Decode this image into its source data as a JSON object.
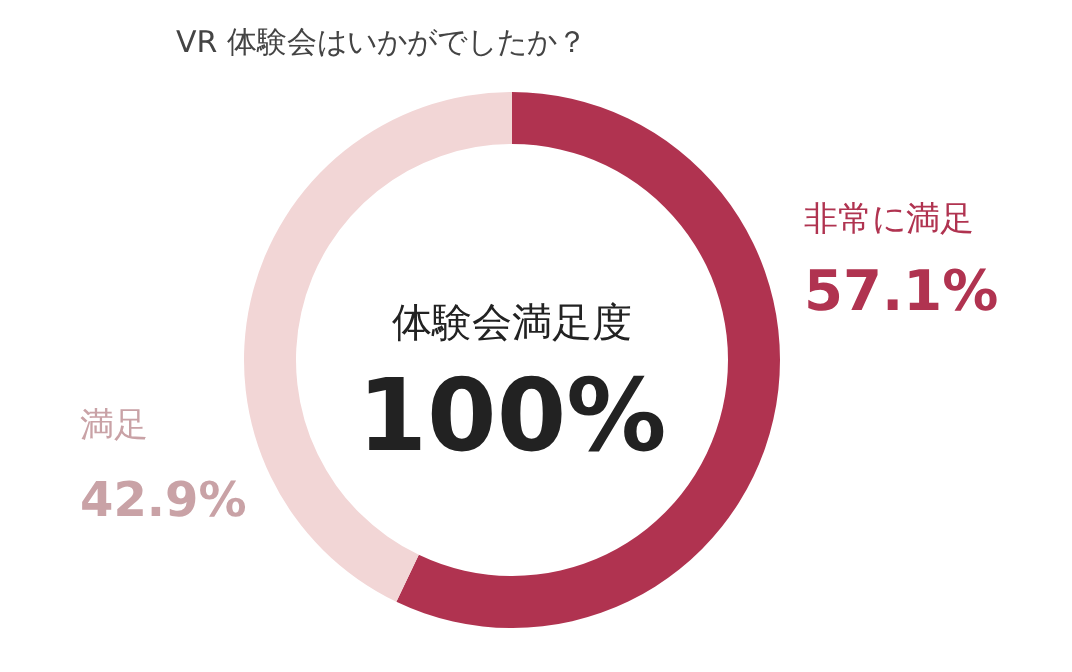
{
  "chart_data": {
    "type": "donut",
    "title": "VR 体験会はいかがでしたか？",
    "categories": [
      "非常に満足",
      "満足"
    ],
    "values": [
      57.1,
      42.9
    ],
    "colors": [
      "#b03350",
      "#f2d6d6"
    ],
    "value_labels": [
      "57.1%",
      "42.9%"
    ],
    "annotations": [
      "体験会満足度",
      "100%"
    ]
  }
}
